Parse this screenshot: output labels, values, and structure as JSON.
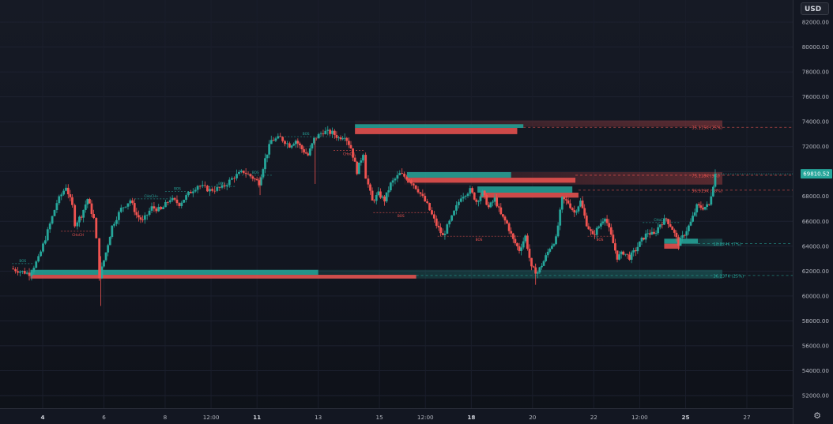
{
  "currency": "USD",
  "colors": {
    "bull": "#26a69a",
    "bear": "#ef5350",
    "background": "#131722",
    "grid": "#1e2230",
    "axis_text": "#b2b5be",
    "last_price_bg": "#26a69a"
  },
  "icons": {
    "settings": "gear-icon"
  },
  "chart_data": {
    "type": "candlestick",
    "ylim": [
      51000,
      83600
    ],
    "y_ticks": [
      "82000.00",
      "80000.00",
      "78000.00",
      "76000.00",
      "74000.00",
      "72000.00",
      "70000.00",
      "68000.00",
      "66000.00",
      "64000.00",
      "62000.00",
      "60000.00",
      "58000.00",
      "56000.00",
      "54000.00",
      "52000.00"
    ],
    "y_tick_values": [
      82000,
      80000,
      78000,
      76000,
      74000,
      72000,
      70000,
      68000,
      66000,
      64000,
      62000,
      60000,
      58000,
      56000,
      54000,
      52000
    ],
    "x_range": [
      3.0,
      28.0
    ],
    "x_ticks": [
      {
        "x": 4,
        "label": "4",
        "bold": true
      },
      {
        "x": 6,
        "label": "6",
        "bold": false
      },
      {
        "x": 8,
        "label": "8",
        "bold": false
      },
      {
        "x": 9.5,
        "label": "12:00",
        "bold": false
      },
      {
        "x": 11,
        "label": "11",
        "bold": true
      },
      {
        "x": 13,
        "label": "13",
        "bold": false
      },
      {
        "x": 15,
        "label": "15",
        "bold": false
      },
      {
        "x": 16.5,
        "label": "12:00",
        "bold": false
      },
      {
        "x": 18,
        "label": "18",
        "bold": true
      },
      {
        "x": 20,
        "label": "20",
        "bold": false
      },
      {
        "x": 22,
        "label": "22",
        "bold": false
      },
      {
        "x": 23.5,
        "label": "12:00",
        "bold": false
      },
      {
        "x": 25,
        "label": "25",
        "bold": true
      },
      {
        "x": 27,
        "label": "27",
        "bold": false
      }
    ],
    "last_price": {
      "value": 69810.52,
      "label": "69810.52"
    },
    "path": [
      [
        3.0,
        62200
      ],
      [
        3.6,
        61800
      ],
      [
        3.9,
        63000
      ],
      [
        4.2,
        65200
      ],
      [
        4.5,
        67500
      ],
      [
        4.8,
        68800
      ],
      [
        5.0,
        67200
      ],
      [
        5.1,
        65800
      ],
      [
        5.3,
        66500
      ],
      [
        5.5,
        67800
      ],
      [
        5.7,
        66200
      ],
      [
        5.8,
        64500
      ],
      [
        5.9,
        61600
      ],
      [
        6.1,
        63500
      ],
      [
        6.3,
        65600
      ],
      [
        6.6,
        67000
      ],
      [
        6.9,
        67700
      ],
      [
        7.1,
        66500
      ],
      [
        7.3,
        66000
      ],
      [
        7.6,
        67100
      ],
      [
        7.9,
        66900
      ],
      [
        8.2,
        67800
      ],
      [
        8.5,
        67400
      ],
      [
        8.8,
        68200
      ],
      [
        9.1,
        68900
      ],
      [
        9.5,
        68500
      ],
      [
        9.9,
        68700
      ],
      [
        10.3,
        69600
      ],
      [
        10.6,
        70000
      ],
      [
        10.9,
        69500
      ],
      [
        11.1,
        69100
      ],
      [
        11.3,
        71000
      ],
      [
        11.5,
        72500
      ],
      [
        11.8,
        72700
      ],
      [
        12.1,
        72100
      ],
      [
        12.3,
        72500
      ],
      [
        12.5,
        71800
      ],
      [
        12.7,
        71300
      ],
      [
        12.9,
        72600
      ],
      [
        13.2,
        73200
      ],
      [
        13.5,
        73100
      ],
      [
        13.7,
        72700
      ],
      [
        13.9,
        72900
      ],
      [
        14.1,
        71900
      ],
      [
        14.3,
        70000
      ],
      [
        14.5,
        71500
      ],
      [
        14.6,
        69600
      ],
      [
        14.8,
        67600
      ],
      [
        15.0,
        68200
      ],
      [
        15.2,
        67700
      ],
      [
        15.4,
        69000
      ],
      [
        15.7,
        69800
      ],
      [
        16.0,
        69400
      ],
      [
        16.3,
        68500
      ],
      [
        16.6,
        67300
      ],
      [
        16.9,
        65700
      ],
      [
        17.1,
        64800
      ],
      [
        17.4,
        66300
      ],
      [
        17.7,
        68000
      ],
      [
        18.0,
        68500
      ],
      [
        18.2,
        67600
      ],
      [
        18.4,
        68300
      ],
      [
        18.6,
        67100
      ],
      [
        18.8,
        67800
      ],
      [
        19.0,
        66500
      ],
      [
        19.2,
        65800
      ],
      [
        19.4,
        64500
      ],
      [
        19.6,
        63700
      ],
      [
        19.8,
        64800
      ],
      [
        20.0,
        62200
      ],
      [
        20.2,
        61900
      ],
      [
        20.4,
        62800
      ],
      [
        20.6,
        63900
      ],
      [
        20.8,
        64600
      ],
      [
        21.0,
        67800
      ],
      [
        21.2,
        67500
      ],
      [
        21.4,
        66700
      ],
      [
        21.6,
        67600
      ],
      [
        21.8,
        65800
      ],
      [
        22.0,
        64800
      ],
      [
        22.2,
        65600
      ],
      [
        22.4,
        66400
      ],
      [
        22.6,
        64800
      ],
      [
        22.8,
        63100
      ],
      [
        23.0,
        63500
      ],
      [
        23.2,
        63100
      ],
      [
        23.4,
        63700
      ],
      [
        23.6,
        64500
      ],
      [
        23.8,
        65100
      ],
      [
        24.0,
        64900
      ],
      [
        24.2,
        65800
      ],
      [
        24.4,
        66200
      ],
      [
        24.6,
        65400
      ],
      [
        24.8,
        64200
      ],
      [
        25.0,
        65000
      ],
      [
        25.2,
        65900
      ],
      [
        25.4,
        67200
      ],
      [
        25.6,
        67100
      ],
      [
        25.8,
        67300
      ],
      [
        26.0,
        69810.52
      ]
    ],
    "zones": [
      {
        "kind": "bear",
        "x0": 14.2,
        "x1": 26.2,
        "y0": 73600,
        "y1": 74100,
        "gradient": true
      },
      {
        "kind": "bear",
        "x0": 14.2,
        "x1": 19.5,
        "y0": 73000,
        "y1": 73500
      },
      {
        "kind": "bull",
        "x0": 14.2,
        "x1": 19.7,
        "y0": 73500,
        "y1": 73800
      },
      {
        "kind": "bear",
        "x0": 15.8,
        "x1": 26.2,
        "y0": 68950,
        "y1": 69950,
        "gradient": true
      },
      {
        "kind": "bull",
        "x0": 15.9,
        "x1": 19.3,
        "y0": 69500,
        "y1": 69950
      },
      {
        "kind": "bear",
        "x0": 15.9,
        "x1": 21.4,
        "y0": 69100,
        "y1": 69500
      },
      {
        "kind": "bull",
        "x0": 18.2,
        "x1": 21.3,
        "y0": 68300,
        "y1": 68800
      },
      {
        "kind": "bear",
        "x0": 18.3,
        "x1": 21.5,
        "y0": 67900,
        "y1": 68300
      },
      {
        "kind": "bull",
        "x0": 24.5,
        "x1": 26.2,
        "y0": 64000,
        "y1": 64600,
        "gradient": true
      },
      {
        "kind": "bull",
        "x0": 24.3,
        "x1": 25.4,
        "y0": 64200,
        "y1": 64600
      },
      {
        "kind": "bear",
        "x0": 24.3,
        "x1": 24.8,
        "y0": 63800,
        "y1": 64200
      },
      {
        "kind": "bull",
        "x0": 3.6,
        "x1": 26.2,
        "y0": 61400,
        "y1": 62100,
        "gradient": true
      },
      {
        "kind": "bull",
        "x0": 3.6,
        "x1": 13.0,
        "y0": 61700,
        "y1": 62100
      },
      {
        "kind": "bear",
        "x0": 3.6,
        "x1": 16.2,
        "y0": 61400,
        "y1": 61700
      }
    ],
    "levels": [
      {
        "kind": "bear",
        "y": 73550,
        "x0": 19.7,
        "x1": 25.2,
        "label": "35.115K (25%)"
      },
      {
        "kind": "bear",
        "y": 69700,
        "x0": 21.4,
        "x1": 25.2,
        "label": "73.118K (9%)"
      },
      {
        "kind": "bear",
        "y": 68500,
        "x0": 21.5,
        "x1": 25.2,
        "label": "56.919K (28%)"
      },
      {
        "kind": "bull",
        "y": 64200,
        "x0": 25.4,
        "x1": 25.9,
        "label": "10.824K (7%)"
      },
      {
        "kind": "bull",
        "y": 61650,
        "x0": 16.2,
        "x1": 25.9,
        "label": "36.237K (25%)"
      }
    ],
    "markers": [
      {
        "kind": "bull",
        "x0": 3.0,
        "x1": 3.7,
        "y": 62600,
        "label": "BOS"
      },
      {
        "kind": "bear",
        "x0": 4.6,
        "x1": 5.7,
        "y": 65200,
        "label": "CHoCH"
      },
      {
        "kind": "bull",
        "x0": 7.0,
        "x1": 8.1,
        "y": 67800,
        "label": "CHoCH+"
      },
      {
        "kind": "bull",
        "x0": 8.0,
        "x1": 8.8,
        "y": 68400,
        "label": "BOS"
      },
      {
        "kind": "bull",
        "x0": 9.4,
        "x1": 10.3,
        "y": 68800,
        "label": "BOS"
      },
      {
        "kind": "bull",
        "x0": 10.4,
        "x1": 11.5,
        "y": 69700,
        "label": "BOS"
      },
      {
        "kind": "bull",
        "x0": 11.8,
        "x1": 13.4,
        "y": 72800,
        "label": "BOS"
      },
      {
        "kind": "bear",
        "x0": 13.5,
        "x1": 14.5,
        "y": 71700,
        "label": "CHoCH"
      },
      {
        "kind": "bear",
        "x0": 14.8,
        "x1": 16.6,
        "y": 66700,
        "label": "BOS"
      },
      {
        "kind": "bear",
        "x0": 16.9,
        "x1": 19.6,
        "y": 64800,
        "label": "BOS"
      },
      {
        "kind": "bear",
        "x0": 21.8,
        "x1": 22.6,
        "y": 64800,
        "label": "BOS"
      },
      {
        "kind": "bull",
        "x0": 23.6,
        "x1": 24.8,
        "y": 65900,
        "label": "CHoCH+"
      }
    ]
  }
}
